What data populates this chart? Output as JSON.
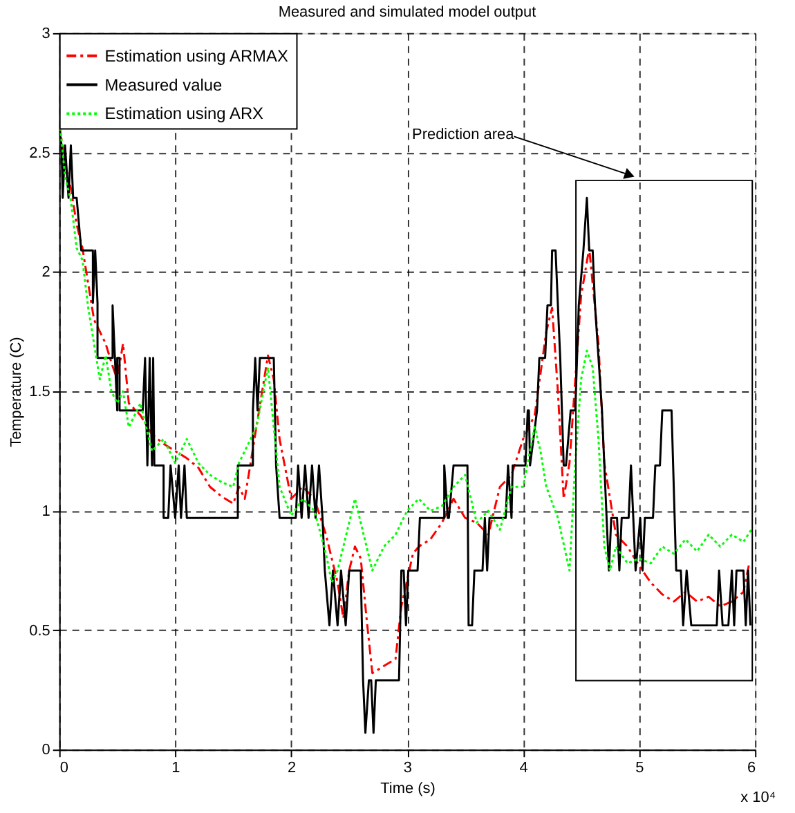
{
  "chart_data": {
    "type": "line",
    "title": "Measured and simulated model output",
    "xlabel": "Time (s)",
    "ylabel": "Temperature (C)",
    "xlim": [
      0,
      6
    ],
    "xticks": [
      0,
      1,
      2,
      3,
      4,
      5,
      6
    ],
    "ylim": [
      0,
      3
    ],
    "yticks": [
      0,
      0.5,
      1,
      1.5,
      2,
      2.5,
      3
    ],
    "grid": true,
    "legend": "top left",
    "annotations": [
      "x 10⁴",
      "Prediction area"
    ],
    "series": [
      {
        "name": "Estimation using ARMAX",
        "color": "#ff0000",
        "line_style": "dashed",
        "x": [
          0,
          0.05,
          0.1,
          0.15,
          0.2,
          0.25,
          0.3,
          0.35,
          0.4,
          0.45,
          0.5,
          0.55,
          0.6,
          0.7,
          0.8,
          0.9,
          1.0,
          1.1,
          1.2,
          1.3,
          1.4,
          1.5,
          1.55,
          1.6,
          1.7,
          1.8,
          1.85,
          1.9,
          2.0,
          2.1,
          2.2,
          2.3,
          2.4,
          2.45,
          2.5,
          2.55,
          2.6,
          2.65,
          2.7,
          2.8,
          2.9,
          2.95,
          3.05,
          3.1,
          3.2,
          3.3,
          3.4,
          3.5,
          3.6,
          3.7,
          3.8,
          3.9,
          4.0,
          4.1,
          4.2,
          4.25,
          4.3,
          4.35,
          4.4,
          4.5,
          4.57,
          4.65,
          4.7,
          4.8,
          4.9,
          5.0,
          5.1,
          5.2,
          5.3,
          5.4,
          5.5,
          5.6,
          5.7,
          5.8,
          5.9,
          5.95
        ],
        "values": [
          2.62,
          2.45,
          2.35,
          2.2,
          2.1,
          1.95,
          1.8,
          1.75,
          1.7,
          1.62,
          1.55,
          1.7,
          1.45,
          1.4,
          1.32,
          1.28,
          1.25,
          1.22,
          1.18,
          1.1,
          1.06,
          1.03,
          1.1,
          1.05,
          1.35,
          1.65,
          1.55,
          1.3,
          1.05,
          1.1,
          1.05,
          0.9,
          0.7,
          0.55,
          0.75,
          0.85,
          0.8,
          0.55,
          0.32,
          0.35,
          0.38,
          0.6,
          0.82,
          0.85,
          0.88,
          0.95,
          1.05,
          0.97,
          0.95,
          0.9,
          1.1,
          1.15,
          1.3,
          1.4,
          1.75,
          1.85,
          1.5,
          1.05,
          1.2,
          1.9,
          2.1,
          1.7,
          1.2,
          0.9,
          0.85,
          0.77,
          0.7,
          0.65,
          0.62,
          0.66,
          0.62,
          0.64,
          0.6,
          0.62,
          0.66,
          0.78
        ]
      },
      {
        "name": "Measured value",
        "color": "#000000",
        "line_style": "solid",
        "x": [
          0,
          0.02,
          0.03,
          0.05,
          0.08,
          0.1,
          0.12,
          0.15,
          0.19,
          0.19,
          0.29,
          0.29,
          0.31,
          0.33,
          0.33,
          0.46,
          0.46,
          0.5,
          0.5,
          0.52,
          0.52,
          0.56,
          0.57,
          0.72,
          0.74,
          0.76,
          0.78,
          0.8,
          0.81,
          0.82,
          0.9,
          0.9,
          0.94,
          0.96,
          1.0,
          1.03,
          1.05,
          1.08,
          1.1,
          1.13,
          1.54,
          1.54,
          1.67,
          1.67,
          1.69,
          1.71,
          1.73,
          1.75,
          1.85,
          1.87,
          1.9,
          2.04,
          2.06,
          2.09,
          2.12,
          2.15,
          2.18,
          2.21,
          2.24,
          2.27,
          2.29,
          2.33,
          2.36,
          2.4,
          2.43,
          2.47,
          2.5,
          2.53,
          2.6,
          2.62,
          2.64,
          2.67,
          2.69,
          2.71,
          2.73,
          2.74,
          2.93,
          2.95,
          2.97,
          2.99,
          3.01,
          3.09,
          3.11,
          3.32,
          3.32,
          3.35,
          3.36,
          3.4,
          3.52,
          3.53,
          3.56,
          3.58,
          3.65,
          3.67,
          3.69,
          3.71,
          3.85,
          3.87,
          3.9,
          3.91,
          4.02,
          4.04,
          4.05,
          4.06,
          4.12,
          4.14,
          4.19,
          4.21,
          4.24,
          4.25,
          4.28,
          4.3,
          4.32,
          4.35,
          4.37,
          4.41,
          4.45,
          4.48,
          4.52,
          4.55,
          4.57,
          4.6,
          4.62,
          4.65,
          4.68,
          4.72,
          4.74,
          4.76,
          4.81,
          4.83,
          4.85,
          4.91,
          4.93,
          4.95,
          4.97,
          5.01,
          5.03,
          5.05,
          5.12,
          5.14,
          5.18,
          5.2,
          5.28,
          5.32,
          5.36,
          5.38,
          5.41,
          5.45,
          5.67,
          5.69,
          5.72,
          5.77,
          5.8,
          5.82,
          5.84,
          5.9,
          5.92,
          5.94,
          5.96
        ],
        "values": [
          2.6,
          2.53,
          2.31,
          2.53,
          2.31,
          2.53,
          2.31,
          2.31,
          2.09,
          2.09,
          2.09,
          1.87,
          2.09,
          1.87,
          1.64,
          1.64,
          1.86,
          1.42,
          1.64,
          1.64,
          1.42,
          1.42,
          1.42,
          1.42,
          1.64,
          1.19,
          1.64,
          1.19,
          1.64,
          1.19,
          1.19,
          0.97,
          0.97,
          1.19,
          0.97,
          1.19,
          0.97,
          1.19,
          0.97,
          0.97,
          0.97,
          1.19,
          1.19,
          1.42,
          1.64,
          1.42,
          1.64,
          1.64,
          1.64,
          1.19,
          0.97,
          0.97,
          1.19,
          0.97,
          1.19,
          0.97,
          1.19,
          0.97,
          1.19,
          0.97,
          0.75,
          0.52,
          0.75,
          0.52,
          0.75,
          0.52,
          0.75,
          0.75,
          0.75,
          0.29,
          0.07,
          0.29,
          0.29,
          0.07,
          0.29,
          0.29,
          0.29,
          0.75,
          0.75,
          0.52,
          0.75,
          0.75,
          0.97,
          0.97,
          1.19,
          0.97,
          0.97,
          1.19,
          1.19,
          0.52,
          0.52,
          0.75,
          0.75,
          0.97,
          0.75,
          0.97,
          0.97,
          1.19,
          0.97,
          1.19,
          1.19,
          1.42,
          1.42,
          1.19,
          1.42,
          1.64,
          1.64,
          1.86,
          1.86,
          2.09,
          2.09,
          1.86,
          1.64,
          1.19,
          1.19,
          1.42,
          1.42,
          1.86,
          2.09,
          2.31,
          2.09,
          2.09,
          1.86,
          1.64,
          1.42,
          0.97,
          0.75,
          0.97,
          0.97,
          0.75,
          0.97,
          0.97,
          1.19,
          0.97,
          0.75,
          0.97,
          0.75,
          0.97,
          0.97,
          1.19,
          1.19,
          1.42,
          1.42,
          0.75,
          0.75,
          0.52,
          0.75,
          0.52,
          0.52,
          0.75,
          0.52,
          0.52,
          0.75,
          0.52,
          0.75,
          0.75,
          0.52,
          0.75,
          0.52
        ]
      },
      {
        "name": "Estimation using ARX",
        "color": "#00ff00",
        "line_style": "dotted",
        "x": [
          0,
          0.05,
          0.1,
          0.15,
          0.2,
          0.25,
          0.3,
          0.35,
          0.4,
          0.45,
          0.5,
          0.55,
          0.6,
          0.7,
          0.75,
          0.8,
          0.9,
          1.0,
          1.1,
          1.2,
          1.3,
          1.4,
          1.5,
          1.55,
          1.6,
          1.7,
          1.8,
          1.9,
          2.0,
          2.1,
          2.2,
          2.3,
          2.35,
          2.4,
          2.5,
          2.55,
          2.6,
          2.7,
          2.8,
          2.9,
          3.0,
          3.1,
          3.2,
          3.3,
          3.4,
          3.5,
          3.6,
          3.7,
          3.8,
          3.9,
          4.0,
          4.1,
          4.15,
          4.2,
          4.3,
          4.4,
          4.45,
          4.5,
          4.55,
          4.6,
          4.65,
          4.7,
          4.75,
          4.8,
          4.9,
          5.0,
          5.1,
          5.2,
          5.3,
          5.4,
          5.5,
          5.6,
          5.7,
          5.8,
          5.9,
          5.98
        ],
        "values": [
          2.65,
          2.4,
          2.3,
          2.1,
          2.05,
          1.85,
          1.7,
          1.55,
          1.65,
          1.5,
          1.45,
          1.5,
          1.35,
          1.45,
          1.35,
          1.25,
          1.3,
          1.2,
          1.3,
          1.2,
          1.15,
          1.12,
          1.1,
          1.2,
          1.25,
          1.35,
          1.6,
          1.1,
          0.98,
          1.05,
          1.0,
          0.82,
          0.7,
          0.75,
          0.95,
          1.05,
          0.95,
          0.75,
          0.85,
          0.9,
          1.0,
          1.05,
          1.0,
          1.02,
          1.1,
          1.15,
          0.95,
          1.0,
          0.92,
          1.1,
          1.1,
          1.35,
          1.25,
          1.1,
          0.97,
          0.75,
          1.2,
          1.55,
          1.67,
          1.6,
          1.3,
          0.85,
          0.75,
          0.85,
          0.78,
          0.8,
          0.78,
          0.85,
          0.82,
          0.88,
          0.83,
          0.9,
          0.85,
          0.9,
          0.87,
          0.93
        ]
      }
    ]
  }
}
